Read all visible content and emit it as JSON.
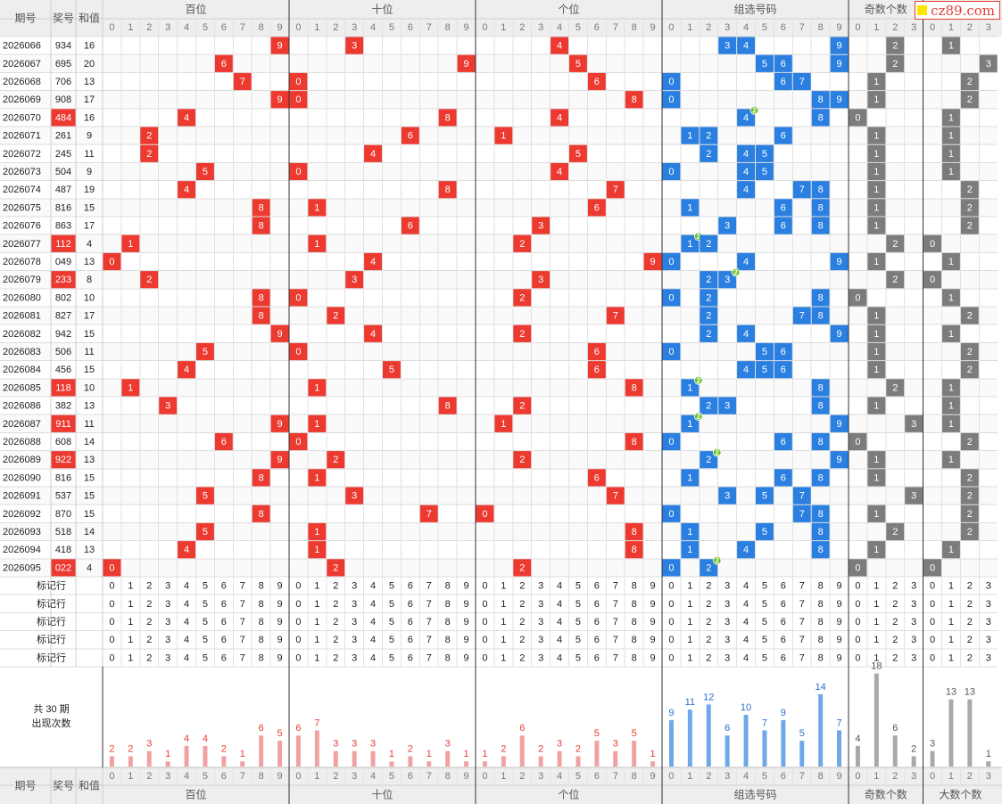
{
  "header": {
    "issue": "期号",
    "prize": "奖号",
    "sum": "和值",
    "groups": [
      "百位",
      "十位",
      "个位",
      "组选号码",
      "奇数个数",
      "大数个数"
    ],
    "digits": [
      "0",
      "1",
      "2",
      "3",
      "4",
      "5",
      "6",
      "7",
      "8",
      "9"
    ],
    "counts": [
      "0",
      "1",
      "2",
      "3"
    ]
  },
  "rows": [
    {
      "issue": "2026066",
      "number": "934",
      "sum": "16"
    },
    {
      "issue": "2026067",
      "number": "695",
      "sum": "20"
    },
    {
      "issue": "2026068",
      "number": "706",
      "sum": "13"
    },
    {
      "issue": "2026069",
      "number": "908",
      "sum": "17"
    },
    {
      "issue": "2026070",
      "number": "484",
      "sum": "16"
    },
    {
      "issue": "2026071",
      "number": "261",
      "sum": "9"
    },
    {
      "issue": "2026072",
      "number": "245",
      "sum": "11"
    },
    {
      "issue": "2026073",
      "number": "504",
      "sum": "9"
    },
    {
      "issue": "2026074",
      "number": "487",
      "sum": "19"
    },
    {
      "issue": "2026075",
      "number": "816",
      "sum": "15"
    },
    {
      "issue": "2026076",
      "number": "863",
      "sum": "17"
    },
    {
      "issue": "2026077",
      "number": "112",
      "sum": "4"
    },
    {
      "issue": "2026078",
      "number": "049",
      "sum": "13"
    },
    {
      "issue": "2026079",
      "number": "233",
      "sum": "8"
    },
    {
      "issue": "2026080",
      "number": "802",
      "sum": "10"
    },
    {
      "issue": "2026081",
      "number": "827",
      "sum": "17"
    },
    {
      "issue": "2026082",
      "number": "942",
      "sum": "15"
    },
    {
      "issue": "2026083",
      "number": "506",
      "sum": "11"
    },
    {
      "issue": "2026084",
      "number": "456",
      "sum": "15"
    },
    {
      "issue": "2026085",
      "number": "118",
      "sum": "10"
    },
    {
      "issue": "2026086",
      "number": "382",
      "sum": "13"
    },
    {
      "issue": "2026087",
      "number": "911",
      "sum": "11"
    },
    {
      "issue": "2026088",
      "number": "608",
      "sum": "14"
    },
    {
      "issue": "2026089",
      "number": "922",
      "sum": "13"
    },
    {
      "issue": "2026090",
      "number": "816",
      "sum": "15"
    },
    {
      "issue": "2026091",
      "number": "537",
      "sum": "15"
    },
    {
      "issue": "2026092",
      "number": "870",
      "sum": "15"
    },
    {
      "issue": "2026093",
      "number": "518",
      "sum": "14"
    },
    {
      "issue": "2026094",
      "number": "418",
      "sum": "13"
    },
    {
      "issue": "2026095",
      "number": "022",
      "sum": "4"
    }
  ],
  "marker_row_label": "标记行",
  "marker_row_count": 5,
  "stats": {
    "total_label": "共 30 期",
    "appear_label": "出现次数",
    "hundreds": [
      2,
      2,
      3,
      1,
      4,
      4,
      2,
      1,
      6,
      5
    ],
    "tens": [
      6,
      7,
      3,
      3,
      3,
      1,
      2,
      1,
      3,
      1
    ],
    "units": [
      1,
      2,
      6,
      2,
      3,
      2,
      5,
      3,
      5,
      1
    ],
    "group": [
      9,
      11,
      12,
      6,
      10,
      7,
      9,
      5,
      14,
      7
    ],
    "odd": [
      4,
      18,
      6,
      2
    ],
    "big": [
      3,
      13,
      13,
      1
    ]
  },
  "colors": {
    "hit_red": "#ec3a30",
    "hit_blue": "#2a7fe0",
    "hit_gray": "#7c7c7c",
    "repeat_badge": "#6cbf2a",
    "bar_pink": "#f2a1a3",
    "bar_blue": "#6fa8e8",
    "bar_gray": "#a9a9a9",
    "header_bg": "#eeeeee",
    "header_text": "#555555"
  },
  "logo": "cz89.com"
}
